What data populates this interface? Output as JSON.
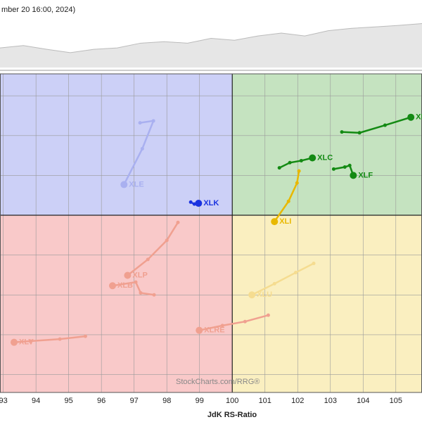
{
  "chart_data": [
    {
      "type": "area",
      "subtitle": "mber 20 16:00, 2024)",
      "color": "#e6e6e6",
      "line_color": "#bbbbbb",
      "values": [
        41,
        46,
        38,
        31,
        38,
        41,
        51,
        54,
        51,
        61,
        57,
        66,
        72,
        66,
        77,
        82,
        85,
        88,
        92
      ],
      "ylim": [
        0,
        100
      ]
    },
    {
      "type": "rrg",
      "x_label": "JdK RS-Ratio",
      "watermark": "StockCharts.com/RRG®",
      "xlim": [
        92.9,
        105.8
      ],
      "ylim": [
        95.55,
        103.55
      ],
      "xticks": [
        93,
        94,
        95,
        96,
        97,
        98,
        99,
        100,
        101,
        102,
        103,
        104,
        105
      ],
      "yticks": [
        96,
        97,
        98,
        99,
        100,
        101,
        102,
        103
      ],
      "grid": true,
      "center": [
        100,
        100
      ],
      "series": [
        {
          "name": "XLK",
          "color": "#1a33e0",
          "x": [
            98.73,
            98.84,
            98.97
          ],
          "y": [
            100.33,
            100.28,
            100.3
          ]
        },
        {
          "name": "XLE",
          "color": "#a9b0f0",
          "x": [
            97.18,
            97.59,
            97.25,
            96.69
          ],
          "y": [
            102.32,
            102.37,
            101.67,
            100.77
          ]
        },
        {
          "name": "XLC",
          "color": "#138a13",
          "x": [
            101.44,
            101.76,
            102.11,
            102.45
          ],
          "y": [
            101.19,
            101.32,
            101.37,
            101.44
          ]
        },
        {
          "name": "XLF",
          "color": "#138a13",
          "x": [
            103.1,
            103.44,
            103.59,
            103.7
          ],
          "y": [
            101.16,
            101.21,
            101.25,
            101.0
          ]
        },
        {
          "name": "XLY",
          "color": "#138a13",
          "x": [
            103.35,
            103.89,
            104.67,
            105.46
          ],
          "y": [
            102.09,
            102.07,
            102.26,
            102.46
          ]
        },
        {
          "name": "XLI",
          "color": "#e8b800",
          "x": [
            102.04,
            101.98,
            101.72,
            101.29
          ],
          "y": [
            101.11,
            100.81,
            100.35,
            99.84
          ]
        },
        {
          "name": "XLP",
          "color": "#f0a090",
          "x": [
            98.34,
            98.0,
            97.42,
            96.8
          ],
          "y": [
            99.82,
            99.37,
            98.89,
            98.49
          ]
        },
        {
          "name": "XLB",
          "color": "#f0a090",
          "x": [
            97.61,
            97.2,
            97.05,
            96.34
          ],
          "y": [
            98.0,
            98.05,
            98.32,
            98.23
          ]
        },
        {
          "name": "XLV",
          "color": "#f0a090",
          "x": [
            95.51,
            94.73,
            93.83,
            93.33
          ],
          "y": [
            96.96,
            96.89,
            96.84,
            96.81
          ]
        },
        {
          "name": "XLRE",
          "color": "#f0a090",
          "x": [
            101.1,
            100.39,
            99.7,
            98.99
          ],
          "y": [
            97.49,
            97.33,
            97.23,
            97.11
          ]
        },
        {
          "name": "XLU",
          "color": "#f5dc90",
          "x": [
            102.49,
            101.94,
            101.29,
            100.6
          ],
          "y": [
            98.79,
            98.56,
            98.28,
            98.0
          ]
        }
      ]
    }
  ]
}
